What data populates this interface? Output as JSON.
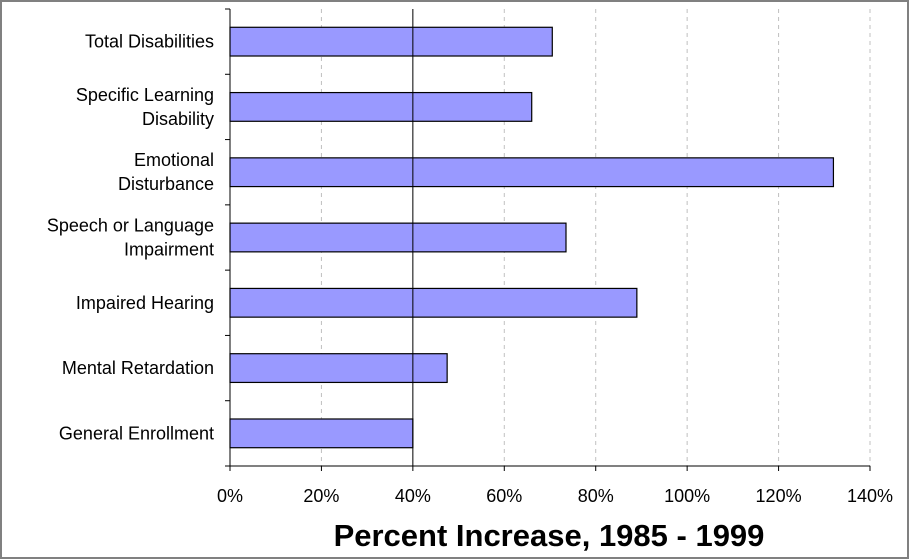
{
  "chart_data": {
    "type": "bar",
    "orientation": "horizontal",
    "categories": [
      "Total Disabilities",
      "Specific Learning Disability",
      "Emotional Disturbance",
      "Speech or Language Impairment",
      "Impaired Hearing",
      "Mental Retardation",
      "General Enrollment"
    ],
    "category_label_lines": [
      [
        "Total Disabilities"
      ],
      [
        "Specific Learning",
        "Disability"
      ],
      [
        "Emotional",
        "Disturbance"
      ],
      [
        "Speech or Language",
        "Impairment"
      ],
      [
        "Impaired Hearing"
      ],
      [
        "Mental Retardation"
      ],
      [
        "General Enrollment"
      ]
    ],
    "values": [
      70.5,
      66,
      132,
      73.5,
      89,
      47.5,
      40
    ],
    "value_unit": "percent",
    "xlabel": "Percent Increase, 1985 - 1999",
    "ylabel": "",
    "xlim": [
      0,
      140
    ],
    "x_tick_labels": [
      "0%",
      "20%",
      "40%",
      "60%",
      "80%",
      "100%",
      "120%",
      "140%"
    ],
    "reference_line_value": 40,
    "grid": "vertical dashed",
    "legend": "none",
    "colors": {
      "bar_fill": "#9999ff",
      "bar_stroke": "#000000",
      "border": "#808080",
      "gridline": "#c0c0c0",
      "background": "#ffffff"
    }
  }
}
